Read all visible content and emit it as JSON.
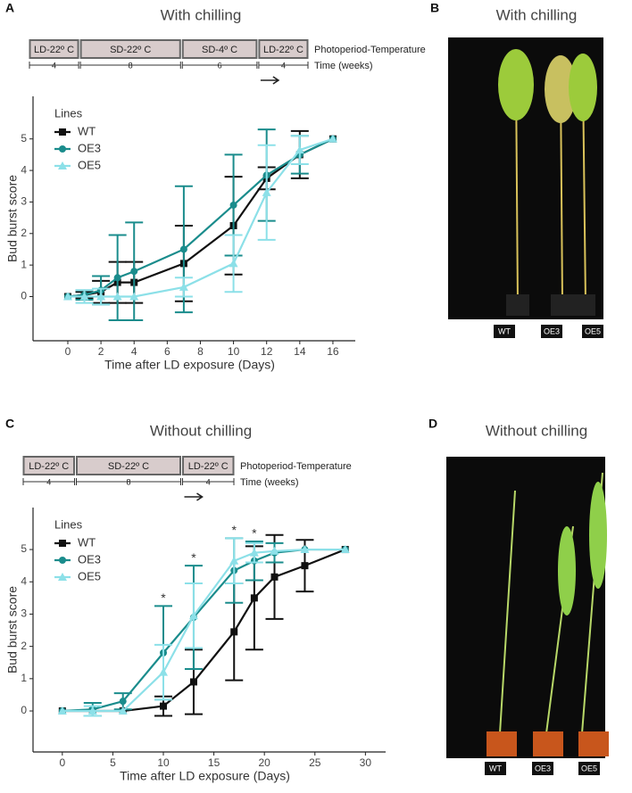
{
  "chart_data": [
    {
      "type": "line",
      "panel": "A",
      "title": "With chilling",
      "x_label": "Time after LD exposure (Days)",
      "y_label": "Bud burst score",
      "legend_title": "Lines",
      "legend": "top-left",
      "xlim": [
        -2.1,
        17.35
      ],
      "ylim": [
        -1.4,
        6.35
      ],
      "xticks": [
        0,
        2,
        4,
        6,
        8,
        10,
        12,
        14,
        16
      ],
      "yticks": [
        0,
        1,
        2,
        3,
        4,
        5
      ],
      "x": [
        0,
        1,
        2,
        3,
        4,
        7,
        10,
        12,
        14,
        16
      ],
      "series": [
        {
          "name": "WT",
          "color": "#111111",
          "marker": "square",
          "values": [
            0,
            0.05,
            0.15,
            0.45,
            0.45,
            1.05,
            2.25,
            3.75,
            4.5,
            5
          ],
          "errors": [
            0,
            0.1,
            0.35,
            0.65,
            0.65,
            1.2,
            1.55,
            0.35,
            0.75,
            0
          ]
        },
        {
          "name": "OE3",
          "color": "#1a8c8c",
          "marker": "circle",
          "values": [
            0,
            0.05,
            0.2,
            0.6,
            0.8,
            1.5,
            2.9,
            3.85,
            4.5,
            5
          ],
          "errors": [
            0,
            0.15,
            0.45,
            1.35,
            1.55,
            2.0,
            1.6,
            1.45,
            0.6,
            0
          ]
        },
        {
          "name": "OE5",
          "color": "#8ce0e8",
          "marker": "triangle",
          "values": [
            0,
            0,
            0,
            0,
            0,
            0.3,
            1.05,
            3.3,
            4.65,
            5
          ],
          "errors": [
            0,
            0.2,
            0.25,
            0,
            0,
            0.3,
            0.9,
            1.5,
            0.45,
            0
          ]
        }
      ],
      "annotations": []
    },
    {
      "type": "line",
      "panel": "C",
      "title": "Without chilling",
      "x_label": "Time after LD exposure (Days)",
      "y_label": "Bud burst score",
      "legend_title": "Lines",
      "legend": "top-left",
      "xlim": [
        -2.9,
        32
      ],
      "ylim": [
        -1.27,
        6.3
      ],
      "xticks": [
        0,
        5,
        10,
        15,
        20,
        25,
        30
      ],
      "yticks": [
        0,
        1,
        2,
        3,
        4,
        5
      ],
      "x": [
        0,
        3,
        6,
        10,
        13,
        17,
        19,
        21,
        24,
        28
      ],
      "series": [
        {
          "name": "WT",
          "color": "#111111",
          "marker": "square",
          "values": [
            0,
            0,
            0,
            0.15,
            0.9,
            2.45,
            3.5,
            4.15,
            4.5,
            5
          ],
          "errors": [
            0,
            0,
            0,
            0.3,
            1.0,
            1.5,
            1.6,
            1.3,
            0.8,
            0
          ]
        },
        {
          "name": "OE3",
          "color": "#1a8c8c",
          "marker": "circle",
          "values": [
            0,
            0.05,
            0.3,
            1.8,
            2.9,
            4.35,
            4.65,
            4.9,
            5,
            5
          ],
          "errors": [
            0,
            0.2,
            0.25,
            1.45,
            1.6,
            1.0,
            0.6,
            0.3,
            0,
            0
          ]
        },
        {
          "name": "OE5",
          "color": "#8ce0e8",
          "marker": "triangle",
          "values": [
            0,
            0,
            0,
            1.2,
            2.95,
            4.65,
            4.9,
            4.95,
            5,
            5
          ],
          "errors": [
            0,
            0.15,
            0,
            0.85,
            1.0,
            0.7,
            0.3,
            0,
            0,
            0
          ]
        }
      ],
      "annotations": [
        {
          "x": 10,
          "text": "*"
        },
        {
          "x": 13,
          "text": "*"
        },
        {
          "x": 17,
          "text": "*"
        },
        {
          "x": 19,
          "text": "*"
        }
      ]
    }
  ],
  "timelines": [
    {
      "stages": [
        {
          "label": "LD-22º C",
          "weeks": 4
        },
        {
          "label": "SD-22º C",
          "weeks": 8
        },
        {
          "label": "SD-4º C",
          "weeks": 6
        },
        {
          "label": "LD-22º C",
          "weeks": 4
        }
      ],
      "row_labels": [
        "Photoperiod-Temperature",
        "Time (weeks)"
      ]
    },
    {
      "stages": [
        {
          "label": "LD-22º C",
          "weeks": 4
        },
        {
          "label": "SD-22º C",
          "weeks": 8
        },
        {
          "label": "LD-22º C",
          "weeks": 4
        }
      ],
      "row_labels": [
        "Photoperiod-Temperature",
        "Time (weeks)"
      ]
    }
  ],
  "photos": [
    {
      "panel": "B",
      "title": "With chilling",
      "labels": [
        "WT",
        "OE3",
        "OE5"
      ]
    },
    {
      "panel": "D",
      "title": "Without chilling",
      "labels": [
        "WT",
        "OE3",
        "OE5"
      ]
    }
  ]
}
